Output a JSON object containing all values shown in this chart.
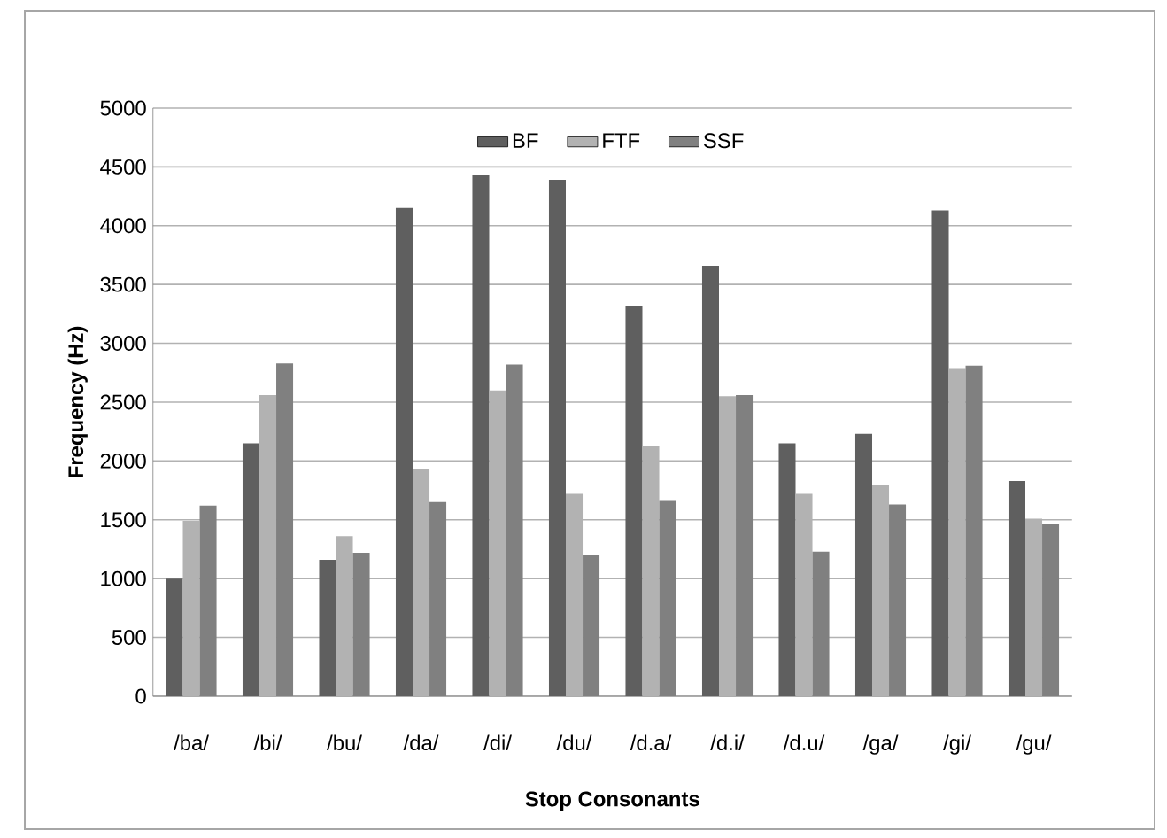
{
  "chart_data": {
    "type": "bar",
    "xlabel": "Stop Consonants",
    "ylabel": "Frequency (Hz)",
    "categories": [
      "/ba/",
      "/bi/",
      "/bu/",
      "/da/",
      "/di/",
      "/du/",
      "/d.a/",
      "/d.i/",
      "/d.u/",
      "/ga/",
      "/gi/",
      "/gu/"
    ],
    "series": [
      {
        "name": "BF",
        "color": "#5f5f5f",
        "values": [
          1000,
          2150,
          1160,
          4150,
          4430,
          4390,
          3320,
          3660,
          2150,
          2230,
          4130,
          1830
        ]
      },
      {
        "name": "FTF",
        "color": "#b2b2b2",
        "values": [
          1490,
          2560,
          1360,
          1930,
          2600,
          1720,
          2130,
          2550,
          1720,
          1800,
          2790,
          1510
        ]
      },
      {
        "name": "SSF",
        "color": "#808080",
        "values": [
          1620,
          2830,
          1220,
          1650,
          2820,
          1200,
          1660,
          2560,
          1230,
          1630,
          2810,
          1460
        ]
      }
    ],
    "ylim": [
      0,
      5000
    ],
    "yticks": [
      0,
      500,
      1000,
      1500,
      2000,
      2500,
      3000,
      3500,
      4000,
      4500,
      5000
    ],
    "grid": "y",
    "legend": "top"
  }
}
